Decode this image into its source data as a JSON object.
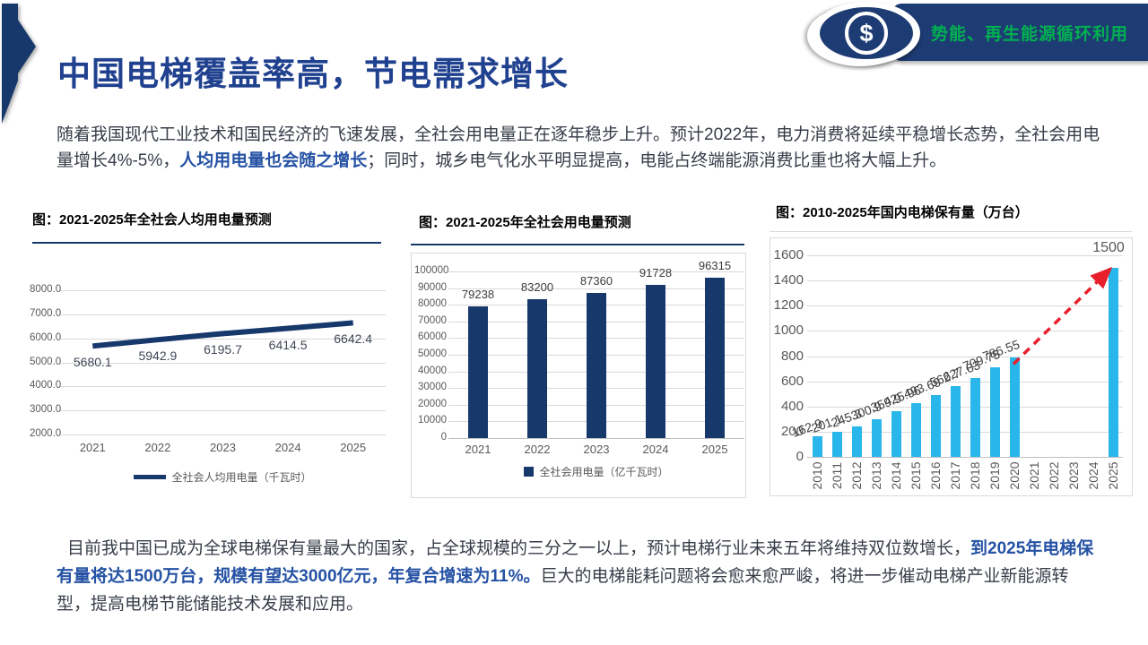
{
  "slide": {
    "title": "中国电梯覆盖率高，节电需求增长",
    "badge": {
      "label": "势能、再生能源循环利用",
      "symbol": "$",
      "bg_color": "#1E3C74",
      "text_color": "#00B050"
    },
    "intro": {
      "part1": "随着我国现代工业技术和国民经济的飞速发展，全社会用电量正在逐年稳步上升。预计2022年，电力消费将延续平稳增长态势，全社会用电量增长4%-5%，",
      "bold": "人均用电量也会随之增长",
      "part2": "；同时，城乡电气化水平明显提高，电能占终端能源消费比重也将大幅上升。"
    },
    "summary": {
      "part1": "目前我中国已成为全球电梯保有量最大的国家，占全球规模的三分之一以上，预计电梯行业未来五年将维持双位数增长，",
      "bold": "到2025年电梯保有量将达1500万台，规模有望达3000亿元，年复合增速为11%。",
      "part2": "巨大的电梯能耗问题将会愈来愈严峻，将进一步催动电梯产业新能源转型，提高电梯节能储能技术发展和应用。"
    }
  },
  "colors": {
    "navy": "#17386B",
    "title_blue": "#20418F",
    "highlight_blue": "#2552A4",
    "body_text": "#373D49",
    "badge_green": "#00B050",
    "cyan_bar": "#29B6EA",
    "arrow_red": "#E8202C",
    "grid": "#D9D9D9",
    "tick_text": "#595959"
  },
  "chart_data": [
    {
      "type": "line",
      "title": "图：2021-2025年全社会人均用电量预测",
      "categories": [
        "2021",
        "2022",
        "2023",
        "2024",
        "2025"
      ],
      "values": [
        5680.1,
        5942.9,
        6195.7,
        6414.5,
        6642.4
      ],
      "ylim": [
        2000,
        8000
      ],
      "ytick_step": 1000,
      "ytick_decimals": 1,
      "line_color": "#17386B",
      "grid": true,
      "legend": "全社会人均用电量（千瓦时）",
      "legend_position": "bottom"
    },
    {
      "type": "bar",
      "title": "图：2021-2025年全社会用电量预测",
      "categories": [
        "2021",
        "2022",
        "2023",
        "2024",
        "2025"
      ],
      "values": [
        79238,
        83200,
        87360,
        91728,
        96315
      ],
      "ylim": [
        0,
        100000
      ],
      "ytick_step": 10000,
      "ytick_decimals": 0,
      "bar_color": "#17386B",
      "grid": true,
      "border": true,
      "legend": "全社会用电量（亿千瓦时）",
      "legend_position": "bottom"
    },
    {
      "type": "bar",
      "title": "图：2010-2025年国内电梯保有量（万台）",
      "categories": [
        "2010",
        "2011",
        "2012",
        "2013",
        "2014",
        "2015",
        "2016",
        "2017",
        "2018",
        "2019",
        "2020",
        "2021",
        "2022",
        "2023",
        "2024",
        "2025"
      ],
      "values": [
        162.9,
        201.1,
        245.3,
        300.9,
        359.9,
        425.96,
        493.69,
        562.7,
        627.83,
        709.75,
        786.55,
        null,
        null,
        null,
        null,
        1500
      ],
      "ylim": [
        0,
        1600
      ],
      "ytick_step": 200,
      "ytick_decimals": 0,
      "bar_color": "#29B6EA",
      "grid": true,
      "border": true,
      "x_label_rotation": -90,
      "data_label_rotation": -20,
      "annotation": {
        "type": "dashed-arrow",
        "from_category": "2020",
        "to_category": "2025",
        "color": "#E8202C",
        "label": "1500"
      }
    }
  ]
}
